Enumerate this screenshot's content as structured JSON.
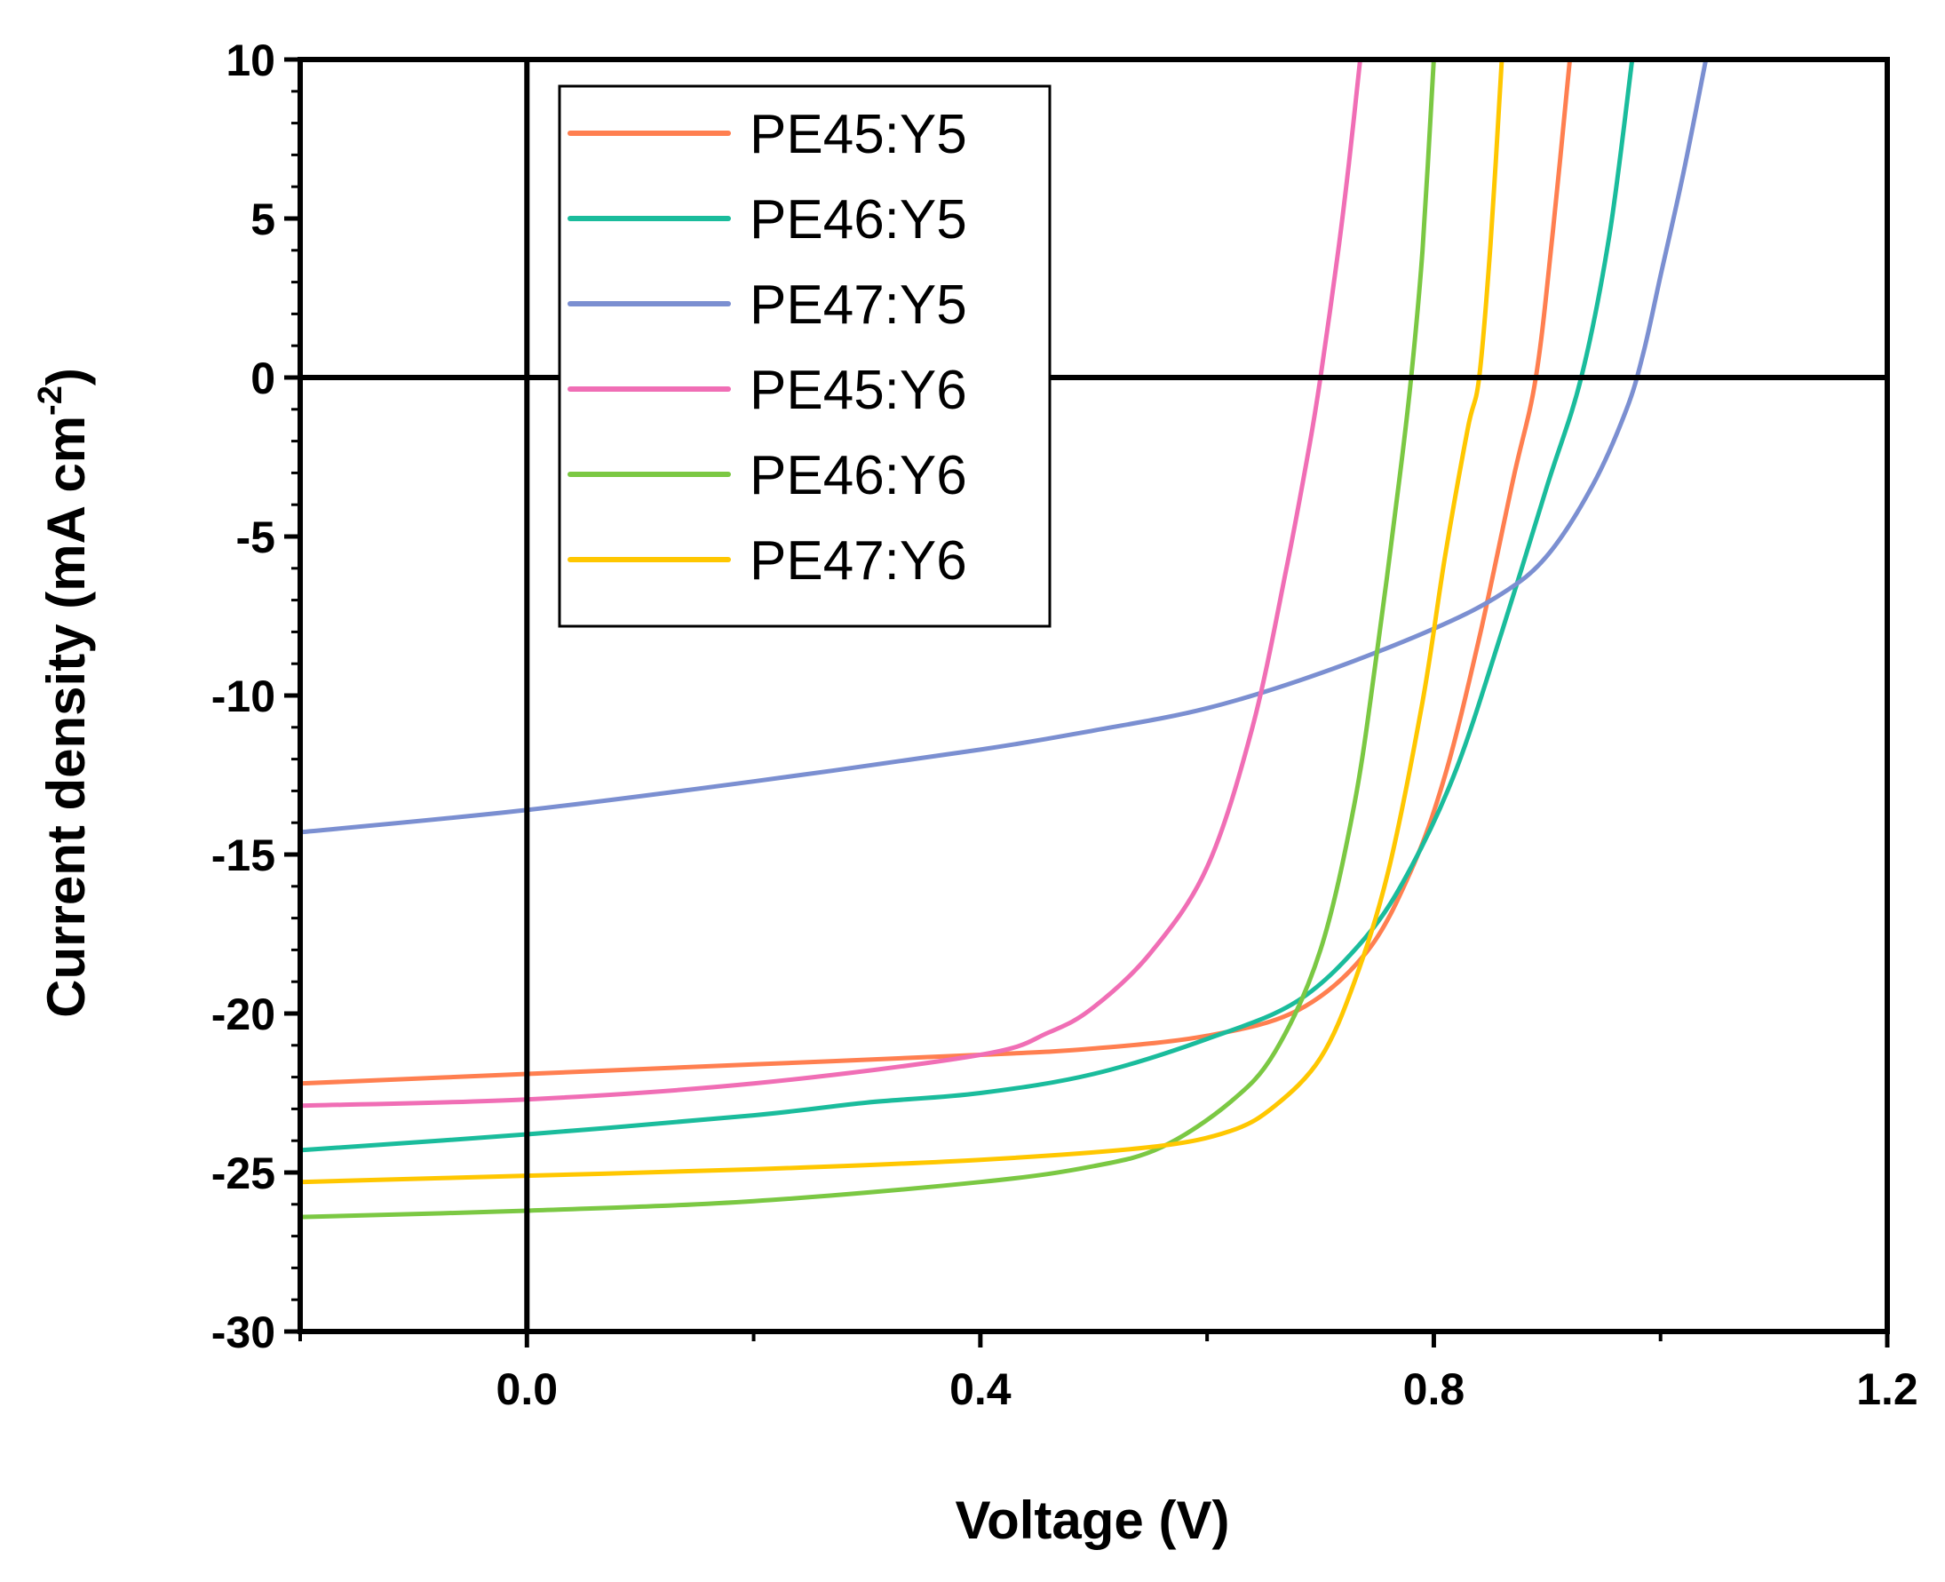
{
  "chart_data": {
    "type": "line",
    "title": "",
    "xlabel": "Voltage (V)",
    "ylabel_main": "Current density (mA cm",
    "ylabel_sup": "-2",
    "ylabel_close": ")",
    "xlim": [
      -0.2,
      1.2
    ],
    "ylim": [
      -30,
      10
    ],
    "xticks": [
      0.0,
      0.4,
      0.8,
      1.2
    ],
    "xtick_labels": [
      "0.0",
      "0.4",
      "0.8",
      "1.2"
    ],
    "yticks": [
      10,
      5,
      0,
      -5,
      -10,
      -15,
      -20,
      -25,
      -30
    ],
    "ytick_labels": [
      "10",
      "5",
      "0",
      "-5",
      "-10",
      "-15",
      "-20",
      "-25",
      "-30"
    ],
    "reference_lines": {
      "x": 0,
      "y": 0
    },
    "grid": false,
    "legend_position": "top-left",
    "series": [
      {
        "name": "PE45:Y5",
        "color": "#FF7F50",
        "points": [
          [
            -0.2,
            -22.2
          ],
          [
            0,
            -21.9
          ],
          [
            0.2,
            -21.6
          ],
          [
            0.4,
            -21.3
          ],
          [
            0.5,
            -21.1
          ],
          [
            0.6,
            -20.7
          ],
          [
            0.68,
            -19.9
          ],
          [
            0.74,
            -18.1
          ],
          [
            0.78,
            -15.5
          ],
          [
            0.81,
            -12.5
          ],
          [
            0.84,
            -8.2
          ],
          [
            0.87,
            -3.2
          ],
          [
            0.89,
            0
          ],
          [
            0.905,
            4.6
          ],
          [
            0.92,
            10
          ]
        ]
      },
      {
        "name": "PE46:Y5",
        "color": "#1ABC9C",
        "points": [
          [
            -0.2,
            -24.3
          ],
          [
            0,
            -23.8
          ],
          [
            0.2,
            -23.2
          ],
          [
            0.3,
            -22.8
          ],
          [
            0.4,
            -22.5
          ],
          [
            0.5,
            -21.9
          ],
          [
            0.6,
            -20.8
          ],
          [
            0.68,
            -19.6
          ],
          [
            0.74,
            -17.6
          ],
          [
            0.78,
            -15.4
          ],
          [
            0.82,
            -12.3
          ],
          [
            0.86,
            -8.0
          ],
          [
            0.9,
            -3.4
          ],
          [
            0.93,
            0
          ],
          [
            0.955,
            4.5
          ],
          [
            0.975,
            10
          ]
        ]
      },
      {
        "name": "PE47:Y5",
        "color": "#7B8FD1",
        "points": [
          [
            -0.2,
            -14.3
          ],
          [
            0,
            -13.6
          ],
          [
            0.2,
            -12.7
          ],
          [
            0.4,
            -11.7
          ],
          [
            0.5,
            -11.1
          ],
          [
            0.6,
            -10.4
          ],
          [
            0.7,
            -9.3
          ],
          [
            0.8,
            -7.9
          ],
          [
            0.86,
            -6.8
          ],
          [
            0.9,
            -5.6
          ],
          [
            0.94,
            -3.4
          ],
          [
            0.97,
            -1.0
          ],
          [
            0.985,
            0.8
          ],
          [
            1.0,
            3.2
          ],
          [
            1.02,
            6.4
          ],
          [
            1.04,
            10
          ]
        ]
      },
      {
        "name": "PE45:Y6",
        "color": "#F06EB5",
        "points": [
          [
            -0.2,
            -22.9
          ],
          [
            0,
            -22.7
          ],
          [
            0.2,
            -22.2
          ],
          [
            0.4,
            -21.3
          ],
          [
            0.46,
            -20.6
          ],
          [
            0.5,
            -19.8
          ],
          [
            0.55,
            -18.1
          ],
          [
            0.6,
            -15.4
          ],
          [
            0.64,
            -11.0
          ],
          [
            0.67,
            -6.0
          ],
          [
            0.69,
            -2.2
          ],
          [
            0.7,
            0
          ],
          [
            0.715,
            3.8
          ],
          [
            0.725,
            6.7
          ],
          [
            0.735,
            10
          ]
        ]
      },
      {
        "name": "PE46:Y6",
        "color": "#7BC843",
        "points": [
          [
            -0.2,
            -26.4
          ],
          [
            0,
            -26.2
          ],
          [
            0.2,
            -25.9
          ],
          [
            0.4,
            -25.3
          ],
          [
            0.5,
            -24.8
          ],
          [
            0.56,
            -24.2
          ],
          [
            0.62,
            -22.8
          ],
          [
            0.66,
            -21.2
          ],
          [
            0.7,
            -18.0
          ],
          [
            0.73,
            -13.4
          ],
          [
            0.75,
            -8.6
          ],
          [
            0.77,
            -3.1
          ],
          [
            0.78,
            0
          ],
          [
            0.79,
            4.0
          ],
          [
            0.8,
            10
          ]
        ]
      },
      {
        "name": "PE47:Y6",
        "color": "#FFC700",
        "points": [
          [
            -0.2,
            -25.3
          ],
          [
            0,
            -25.1
          ],
          [
            0.2,
            -24.9
          ],
          [
            0.4,
            -24.6
          ],
          [
            0.55,
            -24.2
          ],
          [
            0.62,
            -23.7
          ],
          [
            0.66,
            -22.9
          ],
          [
            0.7,
            -21.4
          ],
          [
            0.73,
            -19.0
          ],
          [
            0.76,
            -15.5
          ],
          [
            0.79,
            -10.2
          ],
          [
            0.81,
            -5.6
          ],
          [
            0.83,
            -1.6
          ],
          [
            0.84,
            0
          ],
          [
            0.85,
            4.2
          ],
          [
            0.86,
            10
          ]
        ]
      }
    ]
  }
}
